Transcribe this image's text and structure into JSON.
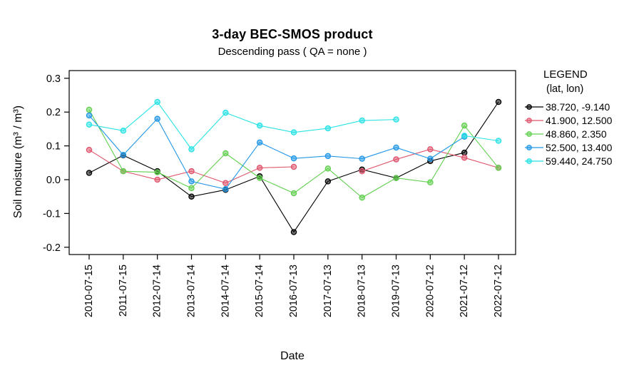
{
  "header": {
    "title": "3-day BEC-SMOS product",
    "subtitle": "Descending pass ( QA = none )"
  },
  "legend": {
    "title": "LEGEND",
    "subtitle": "(lat, lon)"
  },
  "chart_data": {
    "type": "line",
    "title": "3-day BEC-SMOS product",
    "subtitle": "Descending pass ( QA = none )",
    "xlabel": "Date",
    "ylabel": "Soil moisture (m³ / m³)",
    "ylim": [
      -0.22,
      0.32
    ],
    "yticks": [
      0.3,
      0.2,
      0.1,
      0.0,
      -0.1,
      -0.2
    ],
    "grid": false,
    "legend_position": "right",
    "categories": [
      "2010-07-15",
      "2011-07-15",
      "2012-07-14",
      "2013-07-14",
      "2014-07-14",
      "2015-07-14",
      "2016-07-13",
      "2017-07-13",
      "2018-07-13",
      "2019-07-13",
      "2020-07-12",
      "2021-07-12",
      "2022-07-12"
    ],
    "series": [
      {
        "name": "38.720, -9.140",
        "color": "#000000",
        "values": [
          0.02,
          0.072,
          0.025,
          -0.05,
          -0.03,
          0.01,
          -0.155,
          -0.005,
          0.03,
          0.005,
          0.055,
          0.08,
          0.23
        ]
      },
      {
        "name": "41.900, 12.500",
        "color": "#DF536B",
        "values": [
          0.088,
          0.025,
          0.0,
          0.025,
          -0.01,
          0.035,
          0.038,
          null,
          0.025,
          0.06,
          0.09,
          0.065,
          0.035
        ]
      },
      {
        "name": "48.860, 2.350",
        "color": "#61D04F",
        "values": [
          0.207,
          0.025,
          0.022,
          -0.025,
          0.078,
          0.005,
          -0.04,
          0.033,
          -0.053,
          0.005,
          -0.008,
          0.16,
          0.035
        ]
      },
      {
        "name": "52.500, 13.400",
        "color": "#2297E6",
        "values": [
          0.19,
          0.073,
          0.18,
          -0.005,
          -0.028,
          0.11,
          0.063,
          0.07,
          0.062,
          0.095,
          0.062,
          0.127,
          null
        ]
      },
      {
        "name": "59.440, 24.750",
        "color": "#28E2E5",
        "values": [
          0.163,
          0.145,
          0.23,
          0.09,
          0.198,
          0.16,
          0.14,
          0.152,
          0.175,
          0.178,
          null,
          0.13,
          0.115
        ]
      }
    ]
  }
}
